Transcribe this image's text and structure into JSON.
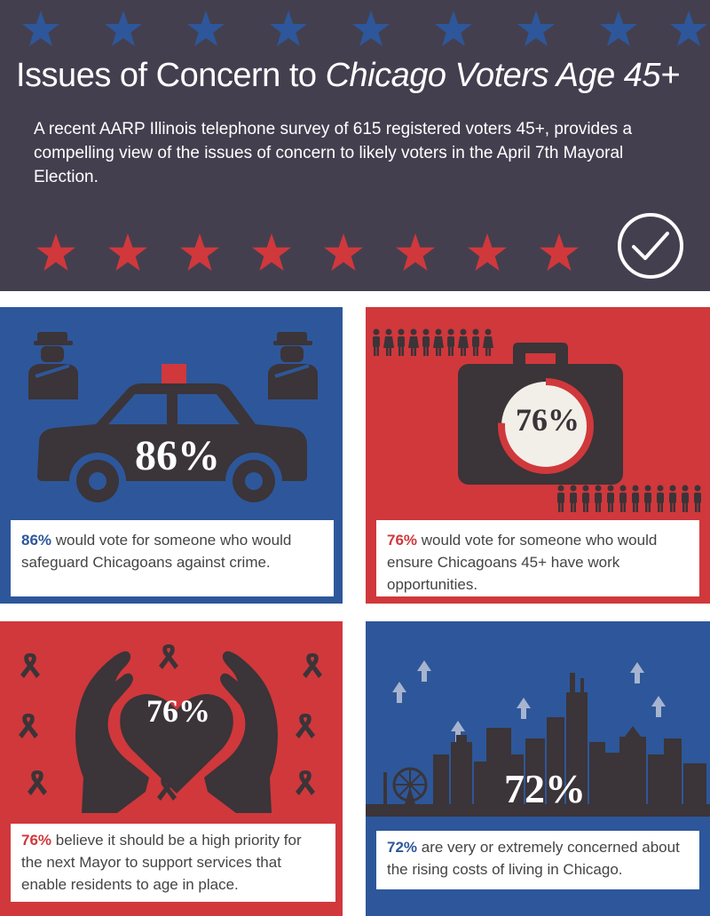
{
  "header": {
    "title_plain": "Issues of Concern to ",
    "title_italic": "Chicago Voters Age 45+",
    "intro": "A recent AARP Illinois telephone survey of  615 registered voters 45+, provides a compelling view of the issues of concern to likely voters in the April 7th Mayoral Election.",
    "top_star_color": "#2d579a",
    "bottom_star_color": "#d0383c"
  },
  "panels": [
    {
      "id": "crime",
      "big_value": "86%",
      "caption_pct": "86%",
      "caption_text": " would vote for someone who would safeguard Chicagoans against crime.",
      "background": "#2d579a",
      "icons": [
        "police-officer-icon",
        "police-car-icon",
        "police-officer-icon"
      ]
    },
    {
      "id": "work",
      "big_value": "76%",
      "caption_pct": "76%",
      "caption_text": " would vote for someone who would ensure Chicagoans  45+ have work opportunities.",
      "background": "#d0383c",
      "icons": [
        "briefcase-icon",
        "people-row-icon",
        "progress-ring-icon"
      ],
      "ring_fraction": 0.76
    },
    {
      "id": "age-in-place",
      "big_value": "76%",
      "caption_pct": "76%",
      "caption_text": " believe it should be a high priority for the next Mayor to support services that enable residents to age in place.",
      "background": "#d0383c",
      "icons": [
        "hands-heart-icon",
        "awareness-ribbon-icon"
      ]
    },
    {
      "id": "cost-of-living",
      "big_value": "72%",
      "caption_pct": "72%",
      "caption_text": " are very or extremely concerned about the rising costs of living in Chicago.",
      "background": "#2d579a",
      "icons": [
        "city-skyline-icon",
        "up-arrow-icon",
        "ferris-wheel-icon"
      ]
    }
  ]
}
